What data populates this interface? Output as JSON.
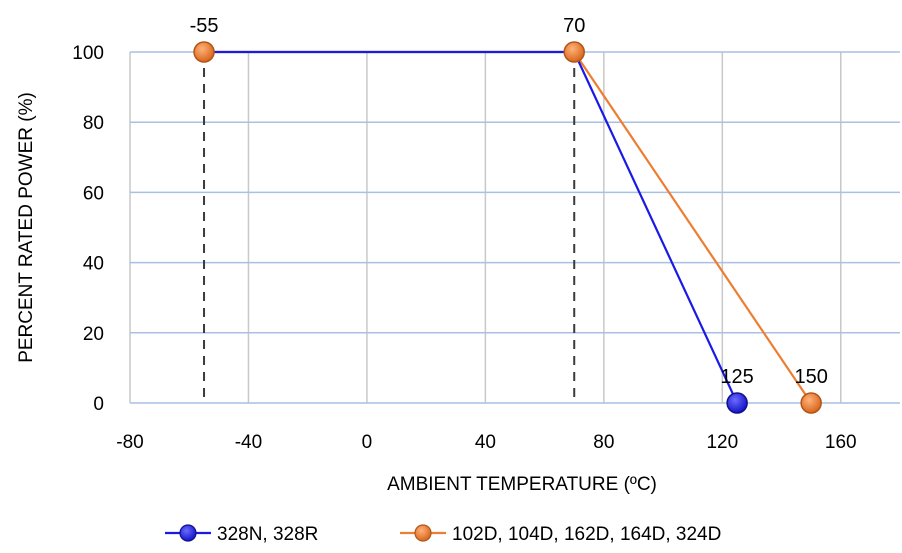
{
  "chart_data": {
    "type": "line",
    "title": "",
    "xlabel": "AMBIENT TEMPERATURE (ºC)",
    "ylabel": "PERCENT RATED POWER (%)",
    "xlim": [
      -80,
      180
    ],
    "ylim": [
      0,
      100
    ],
    "xticks": [
      -80,
      -40,
      0,
      40,
      80,
      120,
      160
    ],
    "yticks": [
      0,
      20,
      40,
      60,
      80,
      100
    ],
    "xtick_labels": [
      "-80",
      "-40",
      "0",
      "40",
      "80",
      "120",
      "160"
    ],
    "ytick_labels": [
      "0",
      "20",
      "40",
      "60",
      "80",
      "100"
    ],
    "grid": true,
    "legend_position": "bottom",
    "series": [
      {
        "name": "328N, 328R",
        "color": "#1a1ae6",
        "x": [
          -55,
          70,
          125
        ],
        "y": [
          100,
          100,
          0
        ],
        "marker_x": [
          125
        ],
        "marker_y": [
          0
        ]
      },
      {
        "name": "102D, 104D, 162D, 164D, 324D",
        "color": "#ed7d31",
        "x": [
          -55,
          70,
          150
        ],
        "y": [
          100,
          100,
          0
        ],
        "marker_x": [
          -55,
          70,
          150
        ],
        "marker_y": [
          100,
          100,
          0
        ]
      }
    ],
    "reference_lines": [
      {
        "x": -55,
        "style": "dashed"
      },
      {
        "x": 70,
        "style": "dashed"
      }
    ],
    "annotations": [
      {
        "text": "-55",
        "x": -55,
        "y": 100
      },
      {
        "text": "70",
        "x": 70,
        "y": 100
      },
      {
        "text": "125",
        "x": 125,
        "y": 0
      },
      {
        "text": "150",
        "x": 150,
        "y": 0
      }
    ]
  }
}
